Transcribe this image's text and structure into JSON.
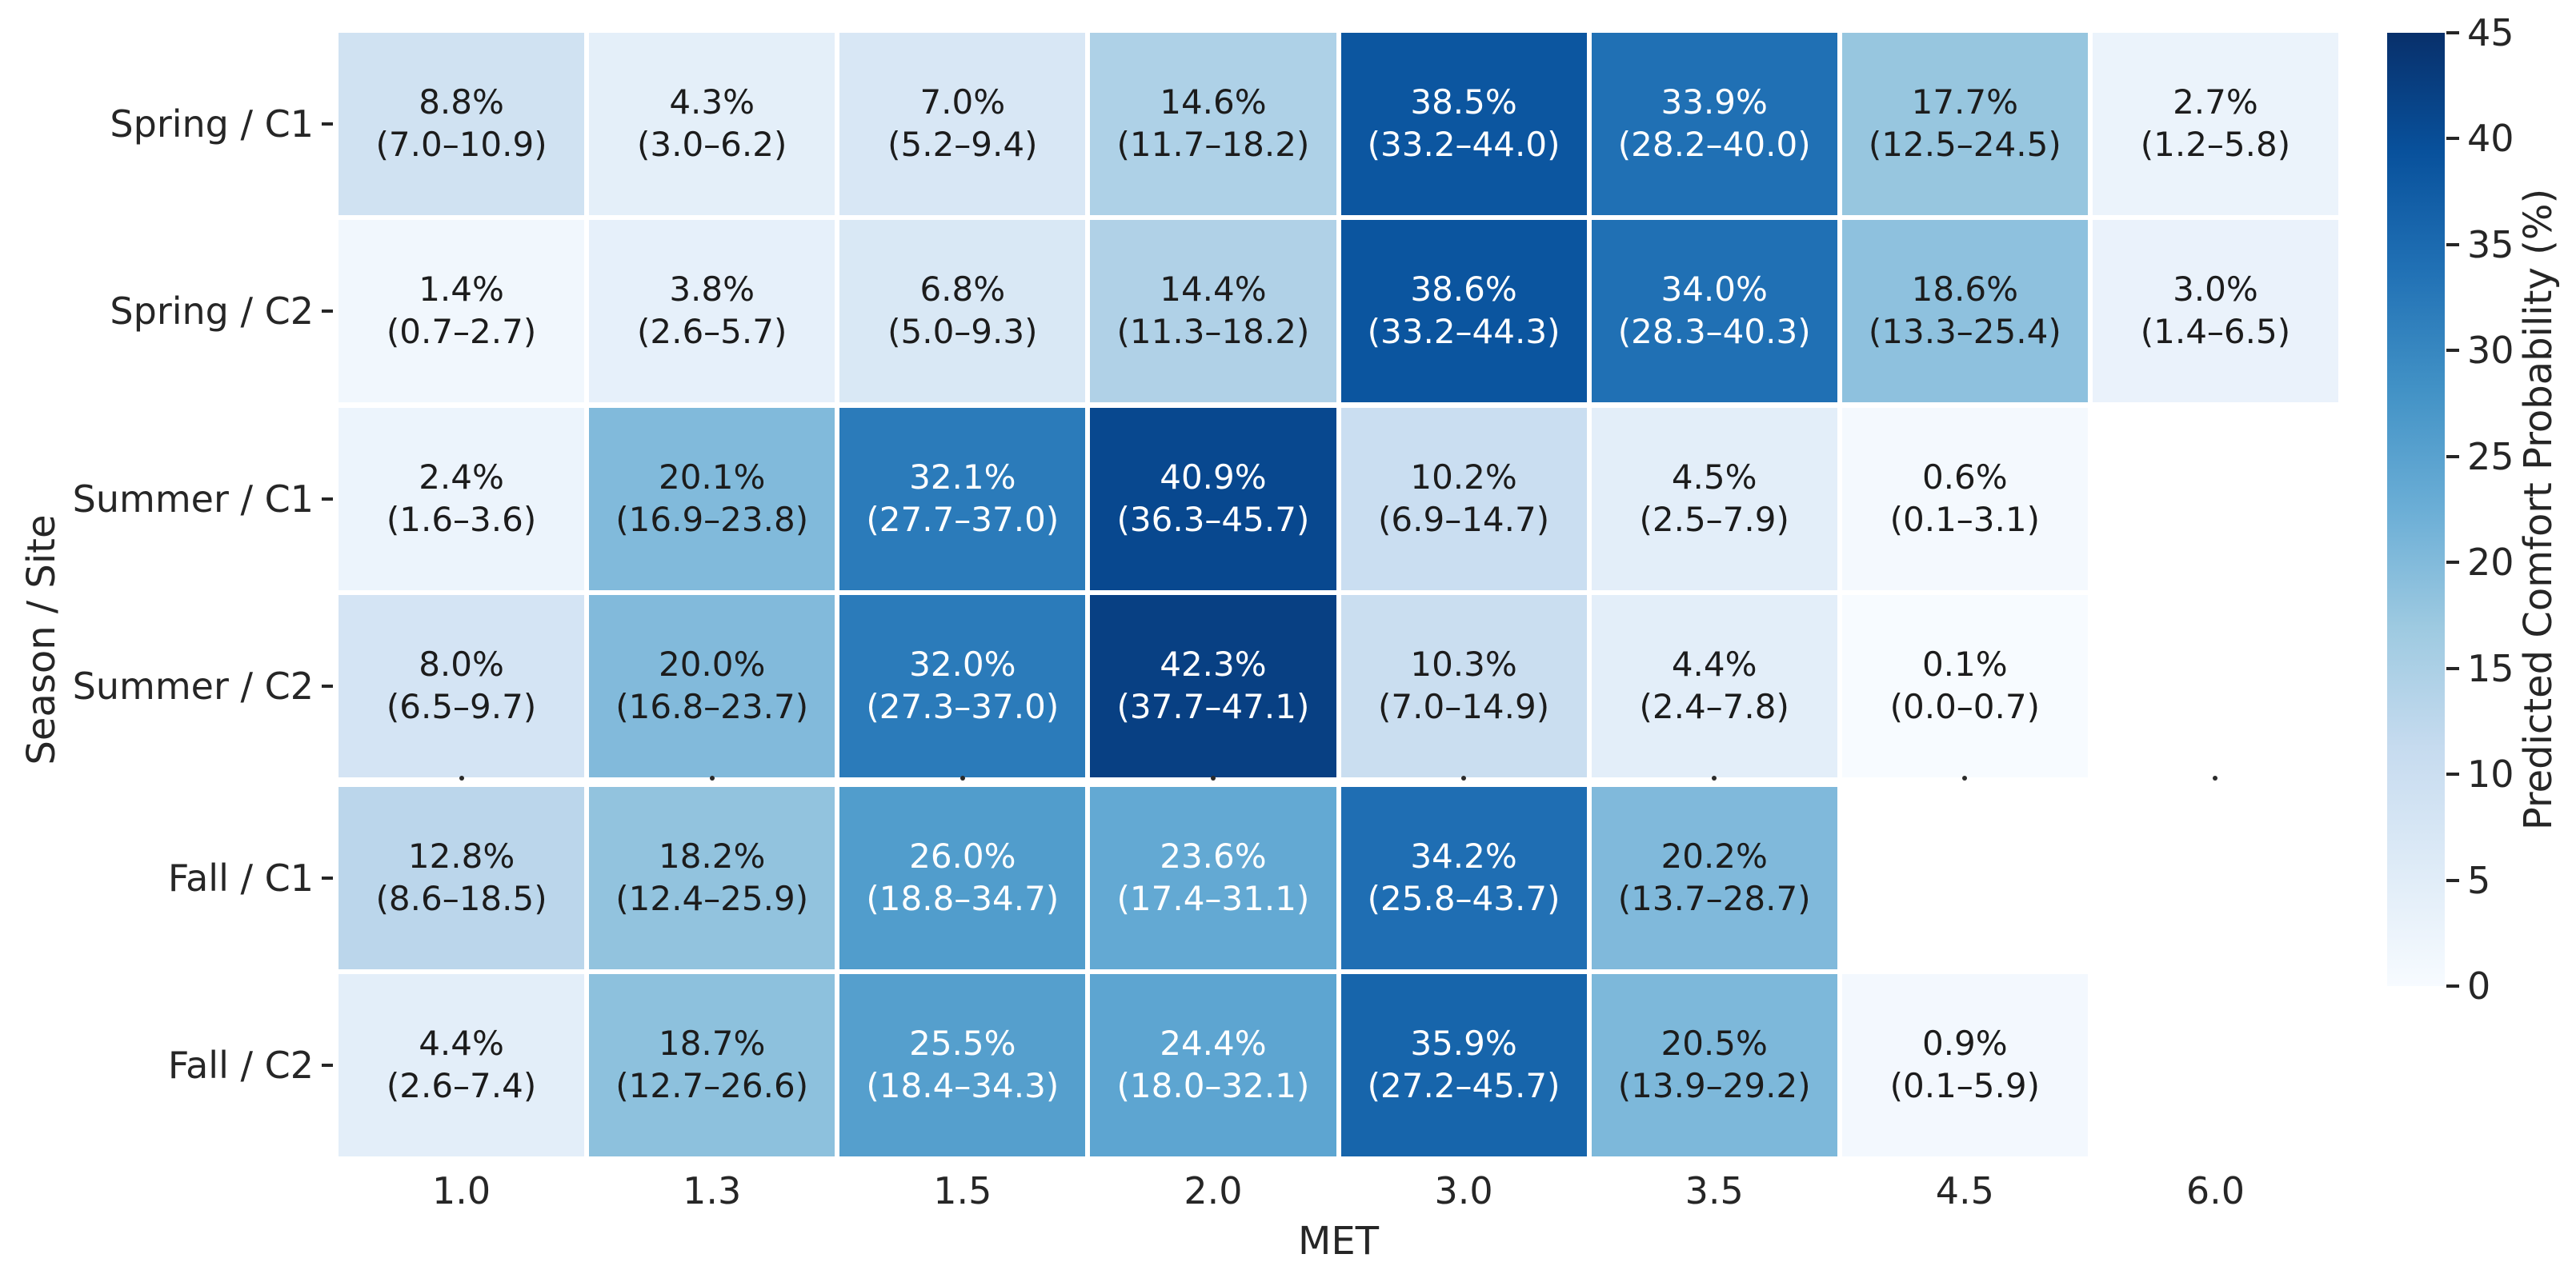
{
  "chart_data": {
    "type": "heatmap",
    "xlabel": "MET",
    "ylabel": "Season / Site",
    "x_categories": [
      "1.0",
      "1.3",
      "1.5",
      "2.0",
      "3.0",
      "3.5",
      "4.5",
      "6.0"
    ],
    "y_categories": [
      "Spring / C1",
      "Spring / C2",
      "Summer / C1",
      "Summer / C2",
      "Fall / C1",
      "Fall / C2"
    ],
    "colorbar": {
      "label": "Predicted Comfort Probability (%)",
      "ticks": [
        45,
        40,
        35,
        30,
        25,
        20,
        15,
        10,
        5,
        0
      ],
      "vmin": 0,
      "vmax": 45,
      "colormap": "Blues"
    },
    "grid": "white cell separators, larger gap with tick dots between Summer / C2 and Fall / C1 rows",
    "cells": [
      [
        {
          "value": 8.8,
          "pct": "8.8%",
          "ci": "(7.0–10.9)"
        },
        {
          "value": 4.3,
          "pct": "4.3%",
          "ci": "(3.0–6.2)"
        },
        {
          "value": 7.0,
          "pct": "7.0%",
          "ci": "(5.2–9.4)"
        },
        {
          "value": 14.6,
          "pct": "14.6%",
          "ci": "(11.7–18.2)"
        },
        {
          "value": 38.5,
          "pct": "38.5%",
          "ci": "(33.2–44.0)"
        },
        {
          "value": 33.9,
          "pct": "33.9%",
          "ci": "(28.2–40.0)"
        },
        {
          "value": 17.7,
          "pct": "17.7%",
          "ci": "(12.5–24.5)"
        },
        {
          "value": 2.7,
          "pct": "2.7%",
          "ci": "(1.2–5.8)"
        }
      ],
      [
        {
          "value": 1.4,
          "pct": "1.4%",
          "ci": "(0.7–2.7)"
        },
        {
          "value": 3.8,
          "pct": "3.8%",
          "ci": "(2.6–5.7)"
        },
        {
          "value": 6.8,
          "pct": "6.8%",
          "ci": "(5.0–9.3)"
        },
        {
          "value": 14.4,
          "pct": "14.4%",
          "ci": "(11.3–18.2)"
        },
        {
          "value": 38.6,
          "pct": "38.6%",
          "ci": "(33.2–44.3)"
        },
        {
          "value": 34.0,
          "pct": "34.0%",
          "ci": "(28.3–40.3)"
        },
        {
          "value": 18.6,
          "pct": "18.6%",
          "ci": "(13.3–25.4)"
        },
        {
          "value": 3.0,
          "pct": "3.0%",
          "ci": "(1.4–6.5)"
        }
      ],
      [
        {
          "value": 2.4,
          "pct": "2.4%",
          "ci": "(1.6–3.6)"
        },
        {
          "value": 20.1,
          "pct": "20.1%",
          "ci": "(16.9–23.8)"
        },
        {
          "value": 32.1,
          "pct": "32.1%",
          "ci": "(27.7–37.0)"
        },
        {
          "value": 40.9,
          "pct": "40.9%",
          "ci": "(36.3–45.7)"
        },
        {
          "value": 10.2,
          "pct": "10.2%",
          "ci": "(6.9–14.7)"
        },
        {
          "value": 4.5,
          "pct": "4.5%",
          "ci": "(2.5–7.9)"
        },
        {
          "value": 0.6,
          "pct": "0.6%",
          "ci": "(0.1–3.1)"
        },
        null
      ],
      [
        {
          "value": 8.0,
          "pct": "8.0%",
          "ci": "(6.5–9.7)"
        },
        {
          "value": 20.0,
          "pct": "20.0%",
          "ci": "(16.8–23.7)"
        },
        {
          "value": 32.0,
          "pct": "32.0%",
          "ci": "(27.3–37.0)"
        },
        {
          "value": 42.3,
          "pct": "42.3%",
          "ci": "(37.7–47.1)"
        },
        {
          "value": 10.3,
          "pct": "10.3%",
          "ci": "(7.0–14.9)"
        },
        {
          "value": 4.4,
          "pct": "4.4%",
          "ci": "(2.4–7.8)"
        },
        {
          "value": 0.1,
          "pct": "0.1%",
          "ci": "(0.0–0.7)"
        },
        null
      ],
      [
        {
          "value": 12.8,
          "pct": "12.8%",
          "ci": "(8.6–18.5)"
        },
        {
          "value": 18.2,
          "pct": "18.2%",
          "ci": "(12.4–25.9)"
        },
        {
          "value": 26.0,
          "pct": "26.0%",
          "ci": "(18.8–34.7)"
        },
        {
          "value": 23.6,
          "pct": "23.6%",
          "ci": "(17.4–31.1)"
        },
        {
          "value": 34.2,
          "pct": "34.2%",
          "ci": "(25.8–43.7)"
        },
        {
          "value": 20.2,
          "pct": "20.2%",
          "ci": "(13.7–28.7)"
        },
        null,
        null
      ],
      [
        {
          "value": 4.4,
          "pct": "4.4%",
          "ci": "(2.6–7.4)"
        },
        {
          "value": 18.7,
          "pct": "18.7%",
          "ci": "(12.7–26.6)"
        },
        {
          "value": 25.5,
          "pct": "25.5%",
          "ci": "(18.4–34.3)"
        },
        {
          "value": 24.4,
          "pct": "24.4%",
          "ci": "(18.0–32.1)"
        },
        {
          "value": 35.9,
          "pct": "35.9%",
          "ci": "(27.2–45.7)"
        },
        {
          "value": 20.5,
          "pct": "20.5%",
          "ci": "(13.9–29.2)"
        },
        {
          "value": 0.9,
          "pct": "0.9%",
          "ci": "(0.1–5.9)"
        },
        null
      ]
    ]
  }
}
